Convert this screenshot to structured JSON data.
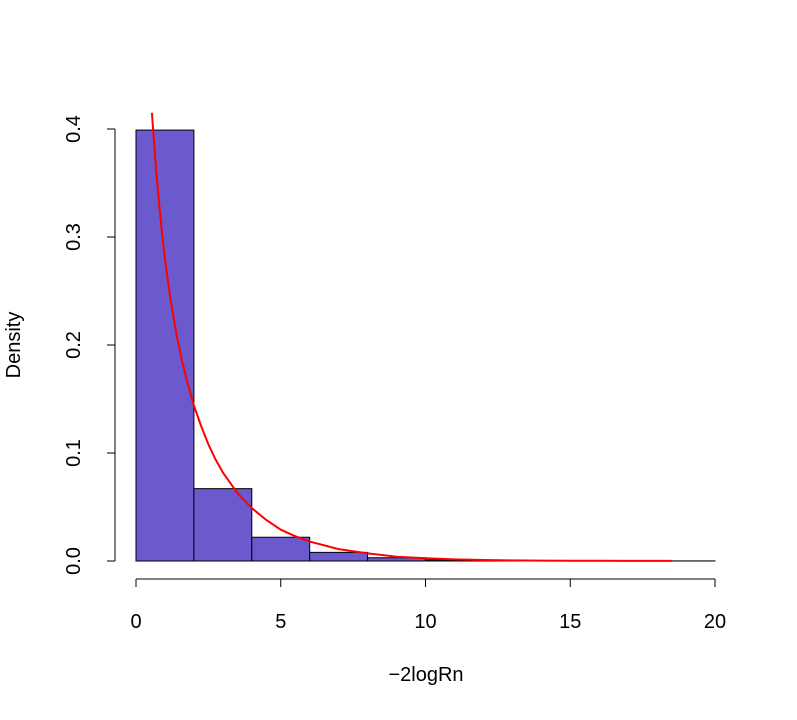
{
  "chart_data": {
    "type": "bar",
    "title": "",
    "xlabel": "−2logRn",
    "ylabel": "Density",
    "xlim": [
      0,
      20
    ],
    "ylim": [
      0,
      0.4
    ],
    "x_ticks": [
      "0",
      "5",
      "10",
      "15",
      "20"
    ],
    "y_ticks": [
      "0.0",
      "0.1",
      "0.2",
      "0.3",
      "0.4"
    ],
    "bins": [
      {
        "start": 0,
        "end": 2,
        "density": 0.399
      },
      {
        "start": 2,
        "end": 4,
        "density": 0.067
      },
      {
        "start": 4,
        "end": 6,
        "density": 0.022
      },
      {
        "start": 6,
        "end": 8,
        "density": 0.008
      },
      {
        "start": 8,
        "end": 10,
        "density": 0.003
      },
      {
        "start": 10,
        "end": 12,
        "density": 0.001
      },
      {
        "start": 12,
        "end": 14,
        "density": 0.0004
      },
      {
        "start": 14,
        "end": 16,
        "density": 0.0002
      },
      {
        "start": 16,
        "end": 18,
        "density": 0.0001
      },
      {
        "start": 18,
        "end": 20,
        "density": 0.0001
      }
    ],
    "curve": {
      "points": [
        [
          0.55,
          0.415
        ],
        [
          0.6,
          0.396
        ],
        [
          0.7,
          0.36
        ],
        [
          0.8,
          0.33
        ],
        [
          0.9,
          0.303
        ],
        [
          1.0,
          0.28
        ],
        [
          1.2,
          0.241
        ],
        [
          1.4,
          0.21
        ],
        [
          1.6,
          0.184
        ],
        [
          1.8,
          0.163
        ],
        [
          2.0,
          0.144
        ],
        [
          2.25,
          0.125
        ],
        [
          2.5,
          0.108
        ],
        [
          2.75,
          0.094
        ],
        [
          3.0,
          0.082
        ],
        [
          3.5,
          0.063
        ],
        [
          4.0,
          0.049
        ],
        [
          4.5,
          0.038
        ],
        [
          5.0,
          0.029
        ],
        [
          5.5,
          0.023
        ],
        [
          6.0,
          0.018
        ],
        [
          7.0,
          0.011
        ],
        [
          8.0,
          0.007
        ],
        [
          9.0,
          0.004
        ],
        [
          10.0,
          0.0025
        ],
        [
          11.0,
          0.0015
        ],
        [
          12.0,
          0.0009
        ],
        [
          13.0,
          0.0006
        ],
        [
          14.0,
          0.0004
        ],
        [
          15.0,
          0.0002
        ],
        [
          16.0,
          0.00015
        ],
        [
          17.0,
          0.0001
        ],
        [
          18.5,
          5e-05
        ]
      ]
    },
    "colors": {
      "bar_fill": "#6a5acd",
      "bar_stroke": "#000000",
      "curve": "#ff0000"
    },
    "grid": false
  }
}
